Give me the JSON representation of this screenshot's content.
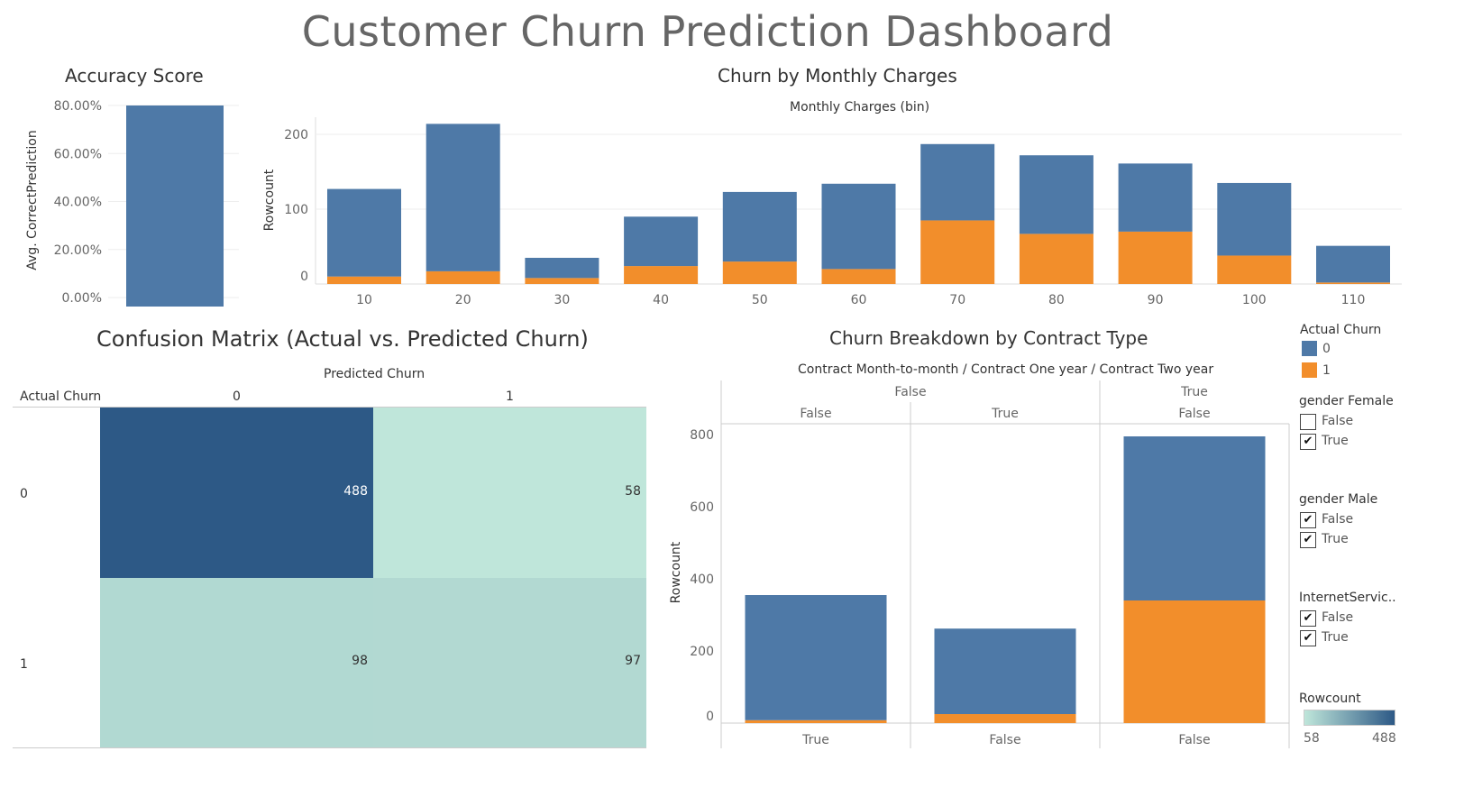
{
  "dashboard": {
    "title": "Customer Churn Prediction Dashboard"
  },
  "colors": {
    "churn0": "#4e79a7",
    "churn1": "#f28e2b",
    "cm_low": "#bfe6da",
    "cm_high": "#2d5986"
  },
  "accuracy": {
    "title": "Accuracy Score",
    "chart_data": {
      "type": "bar",
      "title": "Accuracy Score",
      "ylabel": "Avg. CorrectPrediction",
      "yticks": [
        "0.00%",
        "20.00%",
        "40.00%",
        "60.00%",
        "80.00%"
      ],
      "ylim": [
        0,
        0.8
      ],
      "values": [
        0.8
      ]
    }
  },
  "monthly": {
    "title": "Churn by Monthly Charges",
    "chart_data": {
      "type": "bar",
      "stacked": true,
      "title": "Churn by Monthly Charges",
      "xlabel": "Monthly Charges (bin)",
      "ylabel": "Rowcount",
      "categories": [
        "10",
        "20",
        "30",
        "40",
        "50",
        "60",
        "70",
        "80",
        "90",
        "100",
        "110"
      ],
      "series": [
        {
          "name": "0",
          "values": [
            117,
            197,
            27,
            66,
            93,
            114,
            102,
            105,
            91,
            97,
            49
          ]
        },
        {
          "name": "1",
          "values": [
            10,
            17,
            8,
            24,
            30,
            20,
            85,
            67,
            70,
            38,
            2
          ]
        }
      ],
      "yticks": [
        "0",
        "100",
        "200"
      ],
      "ylim": [
        0,
        200
      ]
    }
  },
  "confusion": {
    "title": "Confusion Matrix (Actual vs. Predicted Churn)",
    "col_header": "Predicted Churn",
    "row_header": "Actual Churn",
    "chart_data": {
      "type": "heatmap",
      "xlabel": "Predicted Churn",
      "ylabel": "Actual Churn",
      "x": [
        "0",
        "1"
      ],
      "y": [
        "0",
        "1"
      ],
      "values": [
        [
          488,
          58
        ],
        [
          98,
          97
        ]
      ]
    }
  },
  "contract": {
    "title": "Churn Breakdown by Contract Type",
    "header": "Contract Month-to-month  /  Contract One year  /  Contract Two year",
    "chart_data": {
      "type": "bar",
      "stacked": true,
      "title": "Churn Breakdown by Contract Type",
      "ylabel": "Rowcount",
      "header_level1": [
        "False",
        "True"
      ],
      "header_level2": [
        "False",
        "True",
        "False"
      ],
      "categories": [
        "True",
        "False",
        "False"
      ],
      "series": [
        {
          "name": "0",
          "values": [
            347,
            237,
            455
          ]
        },
        {
          "name": "1",
          "values": [
            8,
            25,
            340
          ]
        }
      ],
      "yticks": [
        "0",
        "200",
        "400",
        "600",
        "800"
      ],
      "ylim": [
        0,
        800
      ]
    }
  },
  "legend": {
    "actual_churn": {
      "title": "Actual Churn",
      "items": [
        "0",
        "1"
      ]
    },
    "gender_female": {
      "title": "gender Female",
      "items": [
        {
          "label": "False",
          "checked": false
        },
        {
          "label": "True",
          "checked": true
        }
      ]
    },
    "gender_male": {
      "title": "gender Male",
      "items": [
        {
          "label": "False",
          "checked": true
        },
        {
          "label": "True",
          "checked": true
        }
      ]
    },
    "internet": {
      "title": "InternetServic..",
      "items": [
        {
          "label": "False",
          "checked": true
        },
        {
          "label": "True",
          "checked": true
        }
      ]
    },
    "rowcount": {
      "title": "Rowcount",
      "min": "58",
      "max": "488"
    }
  }
}
